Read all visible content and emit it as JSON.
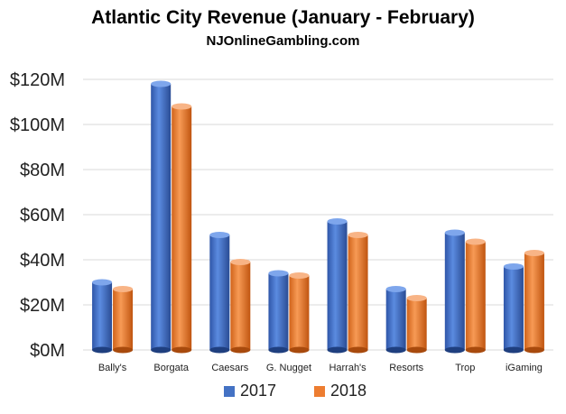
{
  "chart_data": {
    "type": "bar",
    "title": "Atlantic City Revenue (January - February)",
    "subtitle": "NJOnlineGambling.com",
    "categories": [
      "Bally's",
      "Borgata",
      "Caesars",
      "G. Nugget",
      "Harrah's",
      "Resorts",
      "Trop",
      "iGaming"
    ],
    "series": [
      {
        "name": "2017",
        "values": [
          30,
          118,
          51,
          34,
          57,
          27,
          52,
          37
        ],
        "color": "#4472C4"
      },
      {
        "name": "2018",
        "values": [
          27,
          108,
          39,
          33,
          51,
          23,
          48,
          43
        ],
        "color": "#ED7D31"
      }
    ],
    "yticks": [
      "$0M",
      "$20M",
      "$40M",
      "$60M",
      "$80M",
      "$100M",
      "$120M"
    ],
    "ylim": [
      0,
      120
    ],
    "grid": true,
    "legend_position": "bottom",
    "xlabel": "",
    "ylabel": ""
  }
}
